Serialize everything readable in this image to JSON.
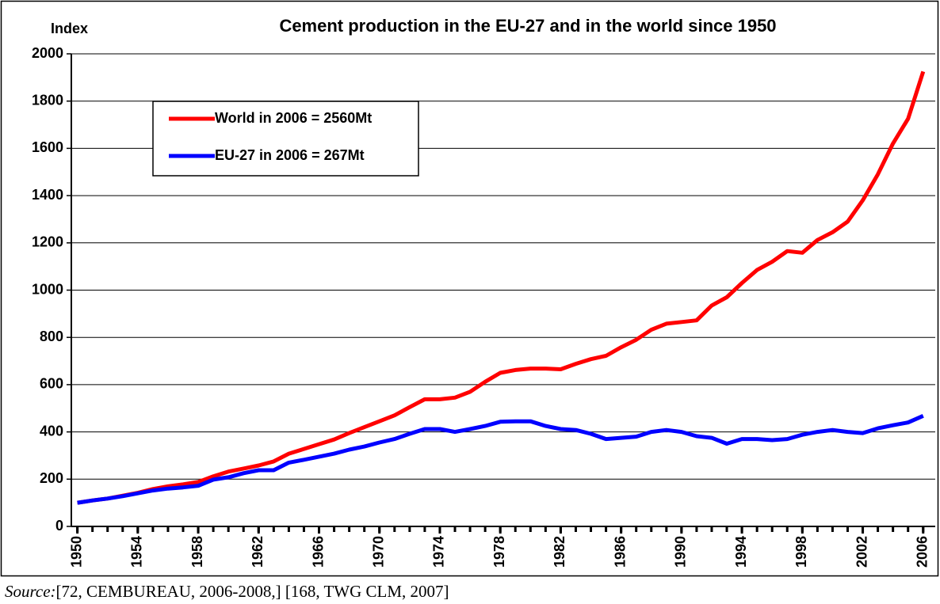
{
  "chart_data": {
    "type": "line",
    "title": "Cement  production in the EU-27 and in the world since 1950",
    "y_label": "Index",
    "source_prefix": "Source:",
    "source_text": "[72, CEMBUREAU, 2006-2008,] [168, TWG CLM, 2007]",
    "x": [
      1950,
      1951,
      1952,
      1953,
      1954,
      1955,
      1956,
      1957,
      1958,
      1959,
      1960,
      1961,
      1962,
      1963,
      1964,
      1965,
      1966,
      1967,
      1968,
      1969,
      1970,
      1971,
      1972,
      1973,
      1974,
      1975,
      1976,
      1977,
      1978,
      1979,
      1980,
      1981,
      1982,
      1983,
      1984,
      1985,
      1986,
      1987,
      1988,
      1989,
      1990,
      1991,
      1992,
      1993,
      1994,
      1995,
      1996,
      1997,
      1998,
      1999,
      2000,
      2001,
      2002,
      2003,
      2004,
      2005,
      2006
    ],
    "series": [
      {
        "name": "World in 2006 = 2560Mt",
        "color": "#ff0000",
        "values": [
          100,
          110,
          118,
          130,
          142,
          158,
          170,
          178,
          188,
          212,
          232,
          245,
          258,
          275,
          308,
          328,
          348,
          368,
          395,
          420,
          445,
          470,
          505,
          538,
          538,
          545,
          570,
          612,
          650,
          662,
          668,
          668,
          665,
          688,
          708,
          722,
          758,
          790,
          832,
          858,
          865,
          872,
          935,
          970,
          1030,
          1085,
          1120,
          1165,
          1158,
          1212,
          1245,
          1290,
          1380,
          1490,
          1620,
          1725,
          1925
        ]
      },
      {
        "name": "EU-27 in 2006 = 267Mt",
        "color": "#0000ff",
        "values": [
          100,
          110,
          118,
          128,
          140,
          152,
          160,
          165,
          172,
          198,
          208,
          225,
          238,
          238,
          270,
          282,
          295,
          308,
          325,
          338,
          355,
          370,
          392,
          412,
          412,
          400,
          412,
          425,
          443,
          445,
          445,
          425,
          412,
          408,
          392,
          370,
          375,
          380,
          400,
          408,
          400,
          382,
          375,
          350,
          370,
          370,
          365,
          370,
          388,
          400,
          408,
          400,
          395,
          415,
          428,
          440,
          468
        ]
      }
    ],
    "xlim": [
      1949.6,
      2006.8
    ],
    "xticks": [
      1950,
      1954,
      1958,
      1962,
      1966,
      1970,
      1974,
      1978,
      1982,
      1986,
      1990,
      1994,
      1998,
      2002,
      2006
    ],
    "ylim": [
      0,
      2000
    ],
    "yticks": [
      0,
      200,
      400,
      600,
      800,
      1000,
      1200,
      1400,
      1600,
      1800,
      2000
    ],
    "grid": true,
    "legend": "upper left"
  }
}
